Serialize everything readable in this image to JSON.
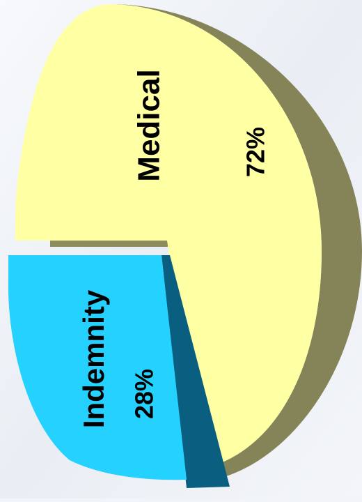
{
  "chart_data": {
    "type": "pie",
    "style": "3d",
    "orientation": "rotated-90-clockwise",
    "slices": [
      {
        "label": "Medical",
        "value": 72,
        "value_label": "72%",
        "color": "#ffffa4",
        "side_color": "#848458"
      },
      {
        "label": "Indemnity",
        "value": 28,
        "value_label": "28%",
        "color": "#24d1ff",
        "side_color": "#0a5f80",
        "exploded": true
      }
    ]
  }
}
